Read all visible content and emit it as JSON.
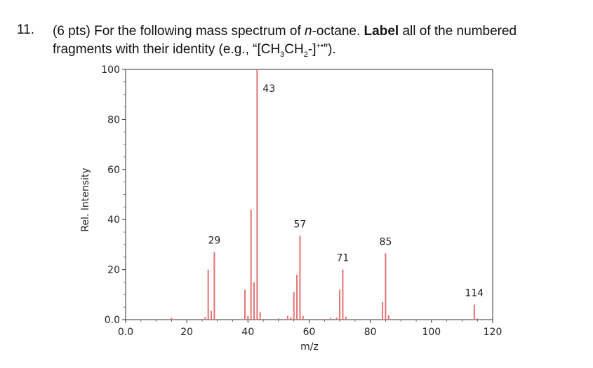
{
  "question": {
    "number": "11.",
    "points": "(6 pts)",
    "line1_a": " For the following mass spectrum of ",
    "n_prefix": "n",
    "line1_b": "-octane. ",
    "bold_word": "Label",
    "line1_c": " all of the numbered",
    "line2_a": "fragments with their identity (e.g., “[CH",
    "sub1": "3",
    "line2_b": "CH",
    "sub2": "2",
    "line2_c": "-]",
    "sup1": "+•",
    "line2_d": "”)."
  },
  "chart_data": {
    "type": "bar",
    "xlabel": "m/z",
    "ylabel": "Rel. Intensity",
    "xlim": [
      0,
      120
    ],
    "ylim": [
      0,
      100
    ],
    "x_ticks": [
      "0.0",
      "20",
      "40",
      "60",
      "80",
      "100",
      "120"
    ],
    "x_tick_values": [
      0,
      20,
      40,
      60,
      80,
      100,
      120
    ],
    "y_ticks": [
      "0.0",
      "20",
      "40",
      "60",
      "80",
      "100"
    ],
    "y_tick_values": [
      0,
      20,
      40,
      60,
      80,
      100
    ],
    "bar_color": "#e57373",
    "peaks": [
      {
        "mz": 15,
        "intensity": 0.8
      },
      {
        "mz": 26,
        "intensity": 1.0
      },
      {
        "mz": 27,
        "intensity": 20
      },
      {
        "mz": 28,
        "intensity": 3.5
      },
      {
        "mz": 29,
        "intensity": 27
      },
      {
        "mz": 39,
        "intensity": 12
      },
      {
        "mz": 40,
        "intensity": 1.5
      },
      {
        "mz": 41,
        "intensity": 44
      },
      {
        "mz": 42,
        "intensity": 15
      },
      {
        "mz": 43,
        "intensity": 100
      },
      {
        "mz": 44,
        "intensity": 3
      },
      {
        "mz": 50,
        "intensity": 0.5
      },
      {
        "mz": 53,
        "intensity": 1.5
      },
      {
        "mz": 54,
        "intensity": 1.0
      },
      {
        "mz": 55,
        "intensity": 11
      },
      {
        "mz": 56,
        "intensity": 18
      },
      {
        "mz": 57,
        "intensity": 33.5
      },
      {
        "mz": 58,
        "intensity": 1.5
      },
      {
        "mz": 67,
        "intensity": 0.7
      },
      {
        "mz": 69,
        "intensity": 0.8
      },
      {
        "mz": 70,
        "intensity": 12
      },
      {
        "mz": 71,
        "intensity": 20
      },
      {
        "mz": 72,
        "intensity": 1.2
      },
      {
        "mz": 84,
        "intensity": 7
      },
      {
        "mz": 85,
        "intensity": 26.5
      },
      {
        "mz": 86,
        "intensity": 1.8
      },
      {
        "mz": 114,
        "intensity": 6
      },
      {
        "mz": 115,
        "intensity": 0.5
      }
    ],
    "annotations": [
      {
        "label": "29",
        "mz": 29,
        "intensity": 27
      },
      {
        "label": "43",
        "mz": 43,
        "intensity": 100
      },
      {
        "label": "57",
        "mz": 57,
        "intensity": 33.5
      },
      {
        "label": "71",
        "mz": 71,
        "intensity": 20
      },
      {
        "label": "85",
        "mz": 85,
        "intensity": 26.5
      },
      {
        "label": "114",
        "mz": 114,
        "intensity": 6
      }
    ],
    "grid": false
  }
}
